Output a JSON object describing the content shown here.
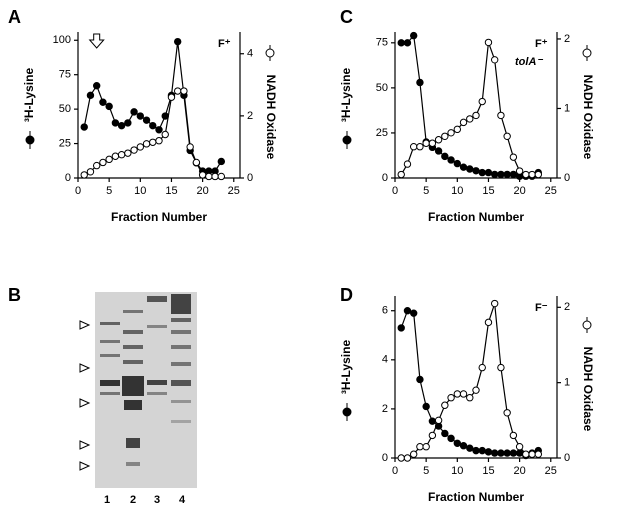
{
  "chart_data": [
    {
      "type": "line",
      "panel": "A",
      "xlabel": "Fraction Number",
      "annotations": [
        "F⁺"
      ],
      "arrow_x": 3,
      "x": [
        1,
        2,
        3,
        4,
        5,
        6,
        7,
        8,
        9,
        10,
        11,
        12,
        13,
        14,
        15,
        16,
        17,
        18,
        19,
        20,
        21,
        22,
        23
      ],
      "series": [
        {
          "name": "³H-Lysine",
          "color": "#000000",
          "marker_fill": "#000000",
          "axis": "y",
          "values": [
            37,
            60,
            67,
            55,
            52,
            40,
            38,
            40,
            48,
            45,
            42,
            38,
            35,
            45,
            60,
            99,
            60,
            20,
            11,
            5,
            5,
            5,
            12
          ]
        },
        {
          "name": "NADH Oxidase",
          "color": "#000000",
          "marker_fill": "#ffffff",
          "axis": "y2",
          "values": [
            0.1,
            0.2,
            0.4,
            0.5,
            0.6,
            0.7,
            0.75,
            0.8,
            0.9,
            1.0,
            1.1,
            1.15,
            1.2,
            1.4,
            2.6,
            2.8,
            2.8,
            1.0,
            0.5,
            0.1,
            0.05,
            0.05,
            0.05
          ]
        }
      ],
      "xlim": [
        0,
        26
      ],
      "xticks": [
        0,
        5,
        10,
        15,
        20,
        25
      ],
      "ylim": [
        0,
        106
      ],
      "yticks": [
        0,
        25,
        50,
        75,
        100
      ],
      "y2lim": [
        0,
        4.7
      ],
      "y2ticks": [
        0,
        2,
        4
      ]
    },
    {
      "type": "line",
      "panel": "C",
      "xlabel": "Fraction Number",
      "annotations": [
        "F⁺",
        "tolA⁻"
      ],
      "x": [
        1,
        2,
        3,
        4,
        5,
        6,
        7,
        8,
        9,
        10,
        11,
        12,
        13,
        14,
        15,
        16,
        17,
        18,
        19,
        20,
        21,
        22,
        23
      ],
      "series": [
        {
          "name": "³H-Lysine",
          "color": "#000000",
          "marker_fill": "#000000",
          "axis": "y",
          "values": [
            75,
            75,
            79,
            53,
            20,
            17,
            15,
            12,
            10,
            8,
            6,
            5,
            4,
            3,
            3,
            2,
            2,
            2,
            2,
            1,
            1,
            1,
            3
          ]
        },
        {
          "name": "NADH Oxidase",
          "color": "#000000",
          "marker_fill": "#ffffff",
          "axis": "y2",
          "values": [
            0.05,
            0.2,
            0.45,
            0.45,
            0.5,
            0.5,
            0.55,
            0.6,
            0.65,
            0.7,
            0.8,
            0.85,
            0.9,
            1.1,
            1.95,
            1.7,
            0.9,
            0.6,
            0.3,
            0.1,
            0.05,
            0.05,
            0.05
          ]
        }
      ],
      "xlim": [
        0,
        26
      ],
      "xticks": [
        0,
        5,
        10,
        15,
        20,
        25
      ],
      "ylim": [
        0,
        81
      ],
      "yticks": [
        0,
        25,
        50,
        75
      ],
      "y2lim": [
        0,
        2.1
      ],
      "y2ticks": [
        0,
        1,
        2
      ]
    },
    {
      "type": "line",
      "panel": "D",
      "xlabel": "Fraction Number",
      "annotations": [
        "F⁻"
      ],
      "x": [
        1,
        2,
        3,
        4,
        5,
        6,
        7,
        8,
        9,
        10,
        11,
        12,
        13,
        14,
        15,
        16,
        17,
        18,
        19,
        20,
        21,
        22,
        23
      ],
      "series": [
        {
          "name": "³H-Lysine",
          "color": "#000000",
          "marker_fill": "#000000",
          "axis": "y",
          "values": [
            5.3,
            6,
            5.9,
            3.2,
            2.1,
            1.5,
            1.3,
            1,
            0.8,
            0.6,
            0.5,
            0.4,
            0.3,
            0.3,
            0.25,
            0.2,
            0.2,
            0.2,
            0.2,
            0.2,
            0.1,
            0.2,
            0.3
          ]
        },
        {
          "name": "NADH Oxidase",
          "color": "#000000",
          "marker_fill": "#ffffff",
          "axis": "y2",
          "values": [
            0,
            0,
            0.05,
            0.15,
            0.15,
            0.3,
            0.5,
            0.7,
            0.8,
            0.85,
            0.85,
            0.8,
            0.9,
            1.2,
            1.8,
            2.05,
            1.2,
            0.6,
            0.3,
            0.15,
            0.05,
            0.05,
            0.05
          ]
        }
      ],
      "xlim": [
        0,
        26
      ],
      "xticks": [
        0,
        5,
        10,
        15,
        20,
        25
      ],
      "ylim": [
        0,
        6.6
      ],
      "yticks": [
        0,
        2,
        4,
        6
      ],
      "y2lim": [
        0,
        2.15
      ],
      "y2ticks": [
        0,
        1,
        2
      ]
    }
  ],
  "gel": {
    "label": "B",
    "lanes": [
      "1",
      "2",
      "3",
      "4"
    ]
  }
}
